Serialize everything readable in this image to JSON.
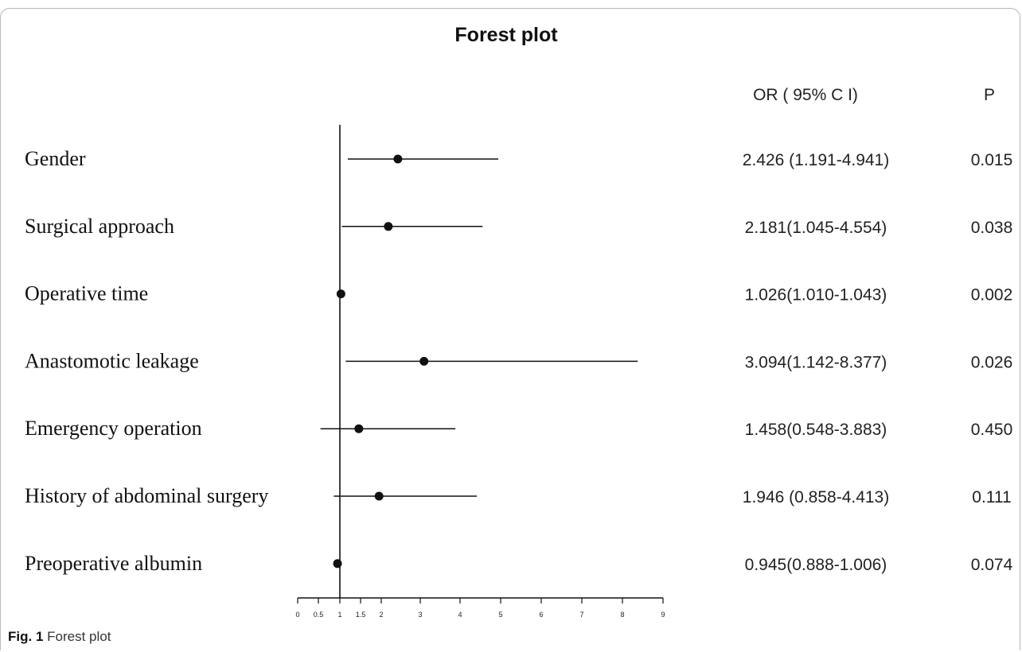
{
  "caption": {
    "label": "Fig. 1",
    "text": "Forest plot"
  },
  "chart_data": {
    "type": "forest",
    "title": "Forest plot",
    "column_headers": {
      "or": "OR ( 95% C I)",
      "p": "P"
    },
    "reference_line": 1,
    "xlim": [
      0,
      9
    ],
    "x_ticks": [
      "0",
      "0.5",
      "1",
      "1.5",
      "2",
      "3",
      "4",
      "5",
      "6",
      "7",
      "8",
      "9"
    ],
    "rows": [
      {
        "label": "Gender",
        "or": 2.426,
        "lo": 1.191,
        "hi": 4.941,
        "or_text": "2.426 (1.191-4.941)",
        "p": "0.015"
      },
      {
        "label": "Surgical approach",
        "or": 2.181,
        "lo": 1.045,
        "hi": 4.554,
        "or_text": "2.181(1.045-4.554)",
        "p": "0.038"
      },
      {
        "label": "Operative time",
        "or": 1.026,
        "lo": 1.01,
        "hi": 1.043,
        "or_text": "1.026(1.010-1.043)",
        "p": "0.002"
      },
      {
        "label": "Anastomotic leakage",
        "or": 3.094,
        "lo": 1.142,
        "hi": 8.377,
        "or_text": "3.094(1.142-8.377)",
        "p": "0.026"
      },
      {
        "label": "Emergency operation",
        "or": 1.458,
        "lo": 0.548,
        "hi": 3.883,
        "or_text": "1.458(0.548-3.883)",
        "p": "0.450"
      },
      {
        "label": "History of abdominal surgery",
        "or": 1.946,
        "lo": 0.858,
        "hi": 4.413,
        "or_text": "1.946 (0.858-4.413)",
        "p": "0.111"
      },
      {
        "label": "Preoperative albumin",
        "or": 0.945,
        "lo": 0.888,
        "hi": 1.006,
        "or_text": "0.945(0.888-1.006)",
        "p": "0.074"
      }
    ]
  }
}
